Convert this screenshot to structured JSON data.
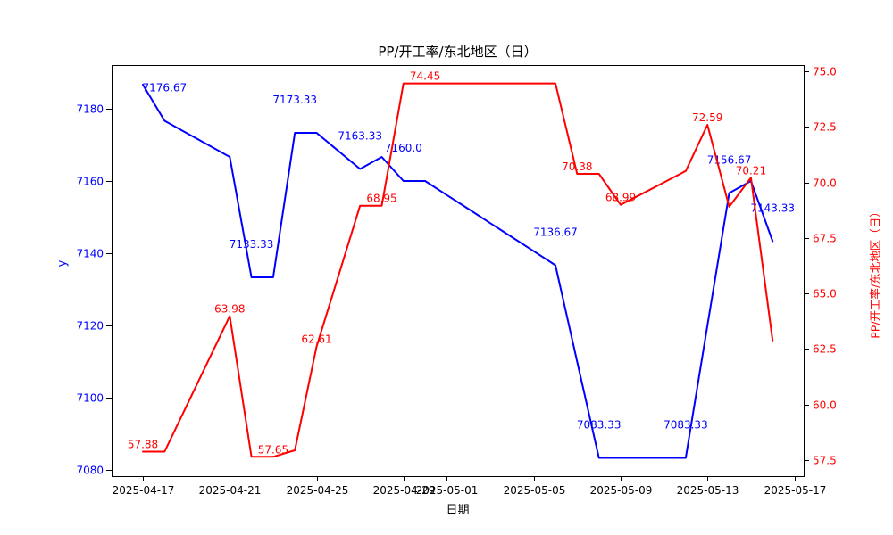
{
  "title": "PP/开工率/东北地区（日）",
  "colors": {
    "left_series": "#0000ff",
    "right_series": "#ff0000",
    "axis": "#000000"
  },
  "axes": {
    "x_label": "日期",
    "y_left_label": "y",
    "y_right_label": "PP/开工率/东北地区（日）",
    "x_ticks": [
      {
        "label": "2025-04-17",
        "day": 0
      },
      {
        "label": "2025-04-21",
        "day": 4
      },
      {
        "label": "2025-04-25",
        "day": 8
      },
      {
        "label": "2025-04-29",
        "day": 12
      },
      {
        "label": "2025-05-01",
        "day": 14
      },
      {
        "label": "2025-05-05",
        "day": 18
      },
      {
        "label": "2025-05-09",
        "day": 22
      },
      {
        "label": "2025-05-13",
        "day": 26
      },
      {
        "label": "2025-05-17",
        "day": 30
      }
    ],
    "y_left_ticks": [
      "7080",
      "7100",
      "7120",
      "7140",
      "7160",
      "7180"
    ],
    "y_right_ticks": [
      "57.5",
      "60.0",
      "62.5",
      "65.0",
      "67.5",
      "70.0",
      "72.5",
      "75.0"
    ]
  },
  "chart_data": {
    "type": "line",
    "title": "PP/开工率/东北地区（日）",
    "xlabel": "日期",
    "grid": false,
    "legend": "none",
    "x": [
      "2025-04-17",
      "2025-04-18",
      "2025-04-19",
      "2025-04-20",
      "2025-04-21",
      "2025-04-22",
      "2025-04-23",
      "2025-04-24",
      "2025-04-25",
      "2025-04-26",
      "2025-04-27",
      "2025-04-28",
      "2025-04-29",
      "2025-04-30",
      "2025-05-01",
      "2025-05-02",
      "2025-05-03",
      "2025-05-04",
      "2025-05-05",
      "2025-05-06",
      "2025-05-07",
      "2025-05-08",
      "2025-05-09",
      "2025-05-10",
      "2025-05-11",
      "2025-05-12",
      "2025-05-13",
      "2025-05-14",
      "2025-05-15",
      "2025-05-16"
    ],
    "series": [
      {
        "name": "y",
        "axis": "left",
        "color": "#0000ff",
        "ylim": [
          7078.2,
          7192.3
        ],
        "values": [
          7186.67,
          7176.67,
          7173.33,
          7170.0,
          7166.67,
          7133.33,
          7133.33,
          7173.33,
          7173.33,
          7168.33,
          7163.33,
          7166.67,
          7160.0,
          7160.0,
          7156.11,
          7152.22,
          7148.33,
          7144.44,
          7140.56,
          7136.67,
          7110.0,
          7083.33,
          7083.33,
          7083.33,
          7083.33,
          7083.33,
          7120.0,
          7156.67,
          7160.0,
          7143.33
        ],
        "point_labels": [
          {
            "index": 1,
            "text": "7176.67"
          },
          {
            "index": 5,
            "text": "7133.33"
          },
          {
            "index": 7,
            "text": "7173.33"
          },
          {
            "index": 10,
            "text": "7163.33"
          },
          {
            "index": 12,
            "text": "7160.0"
          },
          {
            "index": 19,
            "text": "7136.67"
          },
          {
            "index": 21,
            "text": "7083.33"
          },
          {
            "index": 25,
            "text": "7083.33"
          },
          {
            "index": 27,
            "text": "7156.67"
          },
          {
            "index": 29,
            "text": "7143.33"
          }
        ]
      },
      {
        "name": "PP/开工率/东北地区（日）",
        "axis": "right",
        "color": "#ff0000",
        "ylim": [
          56.8,
          75.3
        ],
        "values": [
          57.88,
          57.88,
          59.91,
          61.95,
          63.98,
          57.65,
          57.65,
          57.94,
          62.61,
          65.78,
          68.95,
          68.95,
          74.45,
          74.45,
          74.45,
          74.45,
          74.45,
          74.45,
          74.45,
          74.45,
          70.38,
          70.38,
          68.99,
          69.49,
          70.0,
          70.51,
          72.59,
          68.9,
          70.21,
          62.88
        ],
        "point_labels": [
          {
            "index": 0,
            "text": "57.88"
          },
          {
            "index": 4,
            "text": "63.98"
          },
          {
            "index": 6,
            "text": "57.65"
          },
          {
            "index": 8,
            "text": "62.61"
          },
          {
            "index": 11,
            "text": "68.95"
          },
          {
            "index": 13,
            "text": "74.45"
          },
          {
            "index": 20,
            "text": "70.38"
          },
          {
            "index": 22,
            "text": "68.99"
          },
          {
            "index": 26,
            "text": "72.59"
          },
          {
            "index": 28,
            "text": "70.21"
          }
        ]
      }
    ]
  }
}
